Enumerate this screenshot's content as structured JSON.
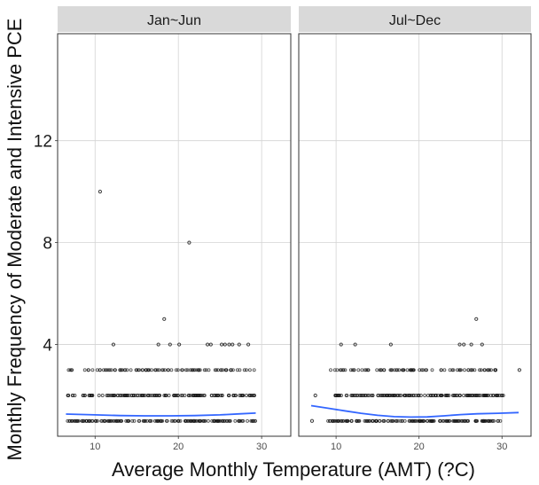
{
  "chart_data": {
    "type": "scatter",
    "xlabel": "Average Monthly Temperature (AMT) (?C)",
    "ylabel": "Monthly Frequency of Moderate and Intensive PCE",
    "xlim": [
      5.5,
      33.5
    ],
    "ylim": [
      0.4,
      16.2
    ],
    "x_ticks": [
      10,
      20,
      30
    ],
    "y_ticks": [
      4,
      8,
      12
    ],
    "grid": true,
    "colors": {
      "points": "#1a1a1a",
      "smooth": "#3366ff",
      "strip_background": "#d9d9d9",
      "grid": "#d3d3d3",
      "panel_border": "#333333"
    },
    "panels": [
      {
        "label": "Jan~Jun",
        "points": [
          {
            "x": 10.6,
            "y": 10
          },
          {
            "x": 21.3,
            "y": 8
          },
          {
            "x": 18.3,
            "y": 5
          },
          {
            "x": 12.2,
            "y": 4
          },
          {
            "x": 17.6,
            "y": 4
          },
          {
            "x": 19.0,
            "y": 4
          },
          {
            "x": 20.1,
            "y": 4
          },
          {
            "x": 23.5,
            "y": 4
          },
          {
            "x": 23.9,
            "y": 4
          },
          {
            "x": 25.2,
            "y": 4
          },
          {
            "x": 25.6,
            "y": 4
          },
          {
            "x": 26.1,
            "y": 4
          },
          {
            "x": 26.5,
            "y": 4
          },
          {
            "x": 27.3,
            "y": 4
          },
          {
            "x": 28.4,
            "y": 4
          }
        ],
        "bands": [
          {
            "y": 3,
            "x_min": 6.7,
            "x_max": 29.2,
            "density": 0.55
          },
          {
            "y": 2,
            "x_min": 6.6,
            "x_max": 29.2,
            "density": 0.9
          },
          {
            "y": 1,
            "x_min": 6.6,
            "x_max": 29.4,
            "density": 1.0
          }
        ],
        "smooth": [
          {
            "x": 6.5,
            "y": 1.27
          },
          {
            "x": 10,
            "y": 1.24
          },
          {
            "x": 13,
            "y": 1.21
          },
          {
            "x": 16,
            "y": 1.2
          },
          {
            "x": 19,
            "y": 1.2
          },
          {
            "x": 22,
            "y": 1.21
          },
          {
            "x": 25,
            "y": 1.24
          },
          {
            "x": 27.5,
            "y": 1.28
          },
          {
            "x": 29.3,
            "y": 1.31
          }
        ]
      },
      {
        "label": "Jul~Dec",
        "points": [
          {
            "x": 26.9,
            "y": 5
          },
          {
            "x": 10.6,
            "y": 4
          },
          {
            "x": 12.3,
            "y": 4
          },
          {
            "x": 16.6,
            "y": 4
          },
          {
            "x": 24.9,
            "y": 4
          },
          {
            "x": 25.4,
            "y": 4
          },
          {
            "x": 26.3,
            "y": 4
          },
          {
            "x": 27.6,
            "y": 4
          },
          {
            "x": 7.5,
            "y": 2
          },
          {
            "x": 32.1,
            "y": 3
          },
          {
            "x": 7.1,
            "y": 1
          }
        ],
        "bands": [
          {
            "y": 3,
            "x_min": 9.2,
            "x_max": 30.0,
            "density": 0.5
          },
          {
            "y": 2,
            "x_min": 9.8,
            "x_max": 30.2,
            "density": 0.9
          },
          {
            "y": 1,
            "x_min": 9.0,
            "x_max": 30.2,
            "density": 1.0
          }
        ],
        "smooth": [
          {
            "x": 7,
            "y": 1.6
          },
          {
            "x": 9,
            "y": 1.5
          },
          {
            "x": 11,
            "y": 1.4
          },
          {
            "x": 13,
            "y": 1.3
          },
          {
            "x": 15,
            "y": 1.22
          },
          {
            "x": 17,
            "y": 1.17
          },
          {
            "x": 19,
            "y": 1.15
          },
          {
            "x": 21,
            "y": 1.16
          },
          {
            "x": 23,
            "y": 1.2
          },
          {
            "x": 25,
            "y": 1.25
          },
          {
            "x": 27,
            "y": 1.28
          },
          {
            "x": 29.5,
            "y": 1.3
          },
          {
            "x": 32,
            "y": 1.33
          }
        ]
      }
    ]
  }
}
